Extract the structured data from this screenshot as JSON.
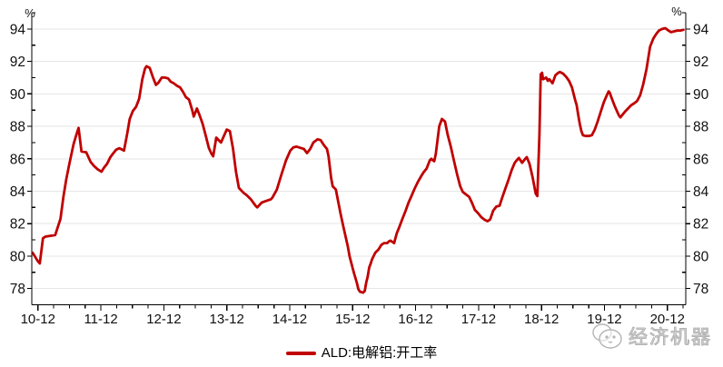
{
  "chart_data": {
    "type": "line",
    "title": "",
    "unit_label": "%",
    "x_axis": {
      "start": "2010-11",
      "end": "2021-03",
      "tick_labels": [
        "10-12",
        "11-12",
        "12-12",
        "13-12",
        "14-12",
        "15-12",
        "16-12",
        "17-12",
        "18-12",
        "19-12",
        "20-12"
      ],
      "tick_months": [
        1,
        13,
        25,
        37,
        49,
        61,
        73,
        85,
        97,
        109,
        121
      ],
      "minor_tick_step_months": 3
    },
    "y_axis": {
      "min": 77,
      "max": 95,
      "major_ticks": [
        94,
        92,
        90,
        88,
        86,
        84,
        82,
        80,
        78
      ],
      "minor_ticks": [
        95,
        93,
        91,
        89,
        87,
        85,
        83,
        81,
        79
      ],
      "grid_values": [
        94,
        92,
        90,
        88,
        86,
        84,
        82,
        80,
        78
      ],
      "grid_on": true
    },
    "legend_position": "bottom-center",
    "series": [
      {
        "name": "ALD:电解铝:开工率",
        "color": "#C00000",
        "x_unit": "months_since_2010-11",
        "points": [
          [
            0,
            80.2
          ],
          [
            0.95,
            79.7
          ],
          [
            1.35,
            79.55
          ],
          [
            1.95,
            81.1
          ],
          [
            2.4,
            81.2
          ],
          [
            4.3,
            81.3
          ],
          [
            5.3,
            82.3
          ],
          [
            5.85,
            83.65
          ],
          [
            6.4,
            84.75
          ],
          [
            7,
            85.7
          ],
          [
            7.8,
            86.9
          ],
          [
            8.3,
            87.45
          ],
          [
            8.75,
            87.9
          ],
          [
            9.3,
            86.45
          ],
          [
            10.2,
            86.4
          ],
          [
            11.05,
            85.8
          ],
          [
            11.7,
            85.55
          ],
          [
            12.4,
            85.35
          ],
          [
            13.1,
            85.2
          ],
          [
            13.6,
            85.45
          ],
          [
            14.2,
            85.7
          ],
          [
            14.8,
            86.1
          ],
          [
            15.4,
            86.35
          ],
          [
            15.9,
            86.55
          ],
          [
            16.5,
            86.65
          ],
          [
            17.1,
            86.55
          ],
          [
            17.4,
            86.5
          ],
          [
            18,
            87.5
          ],
          [
            18.5,
            88.45
          ],
          [
            19.1,
            88.95
          ],
          [
            19.7,
            89.2
          ],
          [
            20.3,
            89.7
          ],
          [
            20.9,
            90.9
          ],
          [
            21.4,
            91.55
          ],
          [
            21.7,
            91.7
          ],
          [
            22.3,
            91.6
          ],
          [
            22.9,
            91.05
          ],
          [
            23.5,
            90.55
          ],
          [
            24,
            90.7
          ],
          [
            24.6,
            91
          ],
          [
            25.2,
            91
          ],
          [
            25.8,
            90.95
          ],
          [
            26.3,
            90.75
          ],
          [
            26.9,
            90.65
          ],
          [
            27.5,
            90.5
          ],
          [
            28.1,
            90.4
          ],
          [
            28.7,
            90.1
          ],
          [
            29.2,
            89.8
          ],
          [
            29.8,
            89.65
          ],
          [
            30.4,
            89
          ],
          [
            30.7,
            88.6
          ],
          [
            31.3,
            89.1
          ],
          [
            31.8,
            88.7
          ],
          [
            32.4,
            88.15
          ],
          [
            33,
            87.4
          ],
          [
            33.6,
            86.65
          ],
          [
            34.1,
            86.3
          ],
          [
            34.4,
            86.15
          ],
          [
            35,
            87.3
          ],
          [
            35.9,
            87
          ],
          [
            36.45,
            87.4
          ],
          [
            37,
            87.8
          ],
          [
            37.6,
            87.7
          ],
          [
            38.2,
            86.6
          ],
          [
            38.75,
            85.2
          ],
          [
            39.3,
            84.2
          ],
          [
            40.2,
            83.9
          ],
          [
            40.8,
            83.75
          ],
          [
            41.6,
            83.5
          ],
          [
            42.5,
            83.1
          ],
          [
            42.8,
            83
          ],
          [
            43.65,
            83.3
          ],
          [
            44.5,
            83.4
          ],
          [
            45.4,
            83.5
          ],
          [
            45.7,
            83.6
          ],
          [
            46.55,
            84.1
          ],
          [
            47.4,
            85
          ],
          [
            48.3,
            85.9
          ],
          [
            49.1,
            86.5
          ],
          [
            49.7,
            86.7
          ],
          [
            50.3,
            86.75
          ],
          [
            51.2,
            86.65
          ],
          [
            51.7,
            86.6
          ],
          [
            52.3,
            86.35
          ],
          [
            52.9,
            86.6
          ],
          [
            53.5,
            87
          ],
          [
            54.3,
            87.2
          ],
          [
            54.9,
            87.15
          ],
          [
            55.5,
            86.85
          ],
          [
            56.1,
            86.6
          ],
          [
            56.4,
            86.15
          ],
          [
            56.9,
            84.8
          ],
          [
            57.2,
            84.3
          ],
          [
            57.8,
            84.1
          ],
          [
            58.1,
            83.6
          ],
          [
            58.7,
            82.6
          ],
          [
            59.2,
            81.85
          ],
          [
            59.8,
            81
          ],
          [
            60.1,
            80.55
          ],
          [
            60.4,
            80
          ],
          [
            61,
            79.25
          ],
          [
            61.3,
            78.9
          ],
          [
            61.8,
            78.35
          ],
          [
            62.1,
            77.95
          ],
          [
            62.4,
            77.8
          ],
          [
            63,
            77.75
          ],
          [
            63.3,
            77.85
          ],
          [
            63.6,
            78.4
          ],
          [
            63.85,
            78.7
          ],
          [
            64.15,
            79.3
          ],
          [
            64.4,
            79.5
          ],
          [
            64.7,
            79.8
          ],
          [
            65.3,
            80.2
          ],
          [
            65.9,
            80.4
          ],
          [
            66.5,
            80.7
          ],
          [
            67,
            80.8
          ],
          [
            67.6,
            80.8
          ],
          [
            67.9,
            80.9
          ],
          [
            68.2,
            80.95
          ],
          [
            68.9,
            80.8
          ],
          [
            69.4,
            81.4
          ],
          [
            69.9,
            81.8
          ],
          [
            70.5,
            82.3
          ],
          [
            71.1,
            82.8
          ],
          [
            71.65,
            83.3
          ],
          [
            72.2,
            83.7
          ],
          [
            72.8,
            84.15
          ],
          [
            73.4,
            84.55
          ],
          [
            74,
            84.9
          ],
          [
            74.5,
            85.15
          ],
          [
            75.1,
            85.4
          ],
          [
            75.7,
            85.9
          ],
          [
            76,
            86
          ],
          [
            76.3,
            85.9
          ],
          [
            76.55,
            85.85
          ],
          [
            76.85,
            86.3
          ],
          [
            77.2,
            87.2
          ],
          [
            77.5,
            88
          ],
          [
            78,
            88.45
          ],
          [
            78.6,
            88.3
          ],
          [
            79.1,
            87.5
          ],
          [
            79.7,
            86.75
          ],
          [
            80.3,
            85.9
          ],
          [
            80.9,
            85.05
          ],
          [
            81.5,
            84.3
          ],
          [
            82,
            83.95
          ],
          [
            82.6,
            83.8
          ],
          [
            83.2,
            83.65
          ],
          [
            83.8,
            83.25
          ],
          [
            84.3,
            82.85
          ],
          [
            84.9,
            82.65
          ],
          [
            85.5,
            82.4
          ],
          [
            86.1,
            82.25
          ],
          [
            86.7,
            82.15
          ],
          [
            87.2,
            82.25
          ],
          [
            87.8,
            82.8
          ],
          [
            88.4,
            83.05
          ],
          [
            89,
            83.1
          ],
          [
            89.5,
            83.6
          ],
          [
            90.1,
            84.15
          ],
          [
            90.7,
            84.7
          ],
          [
            91.3,
            85.3
          ],
          [
            91.9,
            85.75
          ],
          [
            92.4,
            85.95
          ],
          [
            92.7,
            86.05
          ],
          [
            93.3,
            85.75
          ],
          [
            93.9,
            86
          ],
          [
            94.2,
            86.1
          ],
          [
            94.7,
            85.7
          ],
          [
            95,
            85.3
          ],
          [
            95.3,
            84.85
          ],
          [
            95.9,
            83.85
          ],
          [
            96.2,
            83.7
          ],
          [
            96.6,
            87.5
          ],
          [
            96.85,
            91.2
          ],
          [
            97.1,
            91.3
          ],
          [
            97.3,
            90.9
          ],
          [
            97.9,
            91
          ],
          [
            98.2,
            90.8
          ],
          [
            98.5,
            90.9
          ],
          [
            99.1,
            90.65
          ],
          [
            99.65,
            91.15
          ],
          [
            100.2,
            91.3
          ],
          [
            100.5,
            91.35
          ],
          [
            101.1,
            91.25
          ],
          [
            101.7,
            91.05
          ],
          [
            102.25,
            90.8
          ],
          [
            102.8,
            90.4
          ],
          [
            103.4,
            89.65
          ],
          [
            103.7,
            89.3
          ],
          [
            104,
            88.7
          ],
          [
            104.3,
            88.15
          ],
          [
            104.6,
            87.7
          ],
          [
            104.9,
            87.45
          ],
          [
            105.4,
            87.4
          ],
          [
            106,
            87.4
          ],
          [
            106.6,
            87.45
          ],
          [
            107.15,
            87.8
          ],
          [
            107.7,
            88.3
          ],
          [
            108.3,
            88.9
          ],
          [
            108.9,
            89.5
          ],
          [
            109.5,
            89.95
          ],
          [
            109.8,
            90.15
          ],
          [
            110.05,
            90.05
          ],
          [
            110.3,
            89.8
          ],
          [
            110.9,
            89.3
          ],
          [
            111.5,
            88.85
          ],
          [
            111.8,
            88.65
          ],
          [
            112.05,
            88.55
          ],
          [
            112.3,
            88.65
          ],
          [
            112.9,
            88.9
          ],
          [
            113.5,
            89.1
          ],
          [
            114.1,
            89.3
          ],
          [
            114.6,
            89.4
          ],
          [
            115.2,
            89.55
          ],
          [
            115.8,
            89.9
          ],
          [
            116.4,
            90.6
          ],
          [
            117,
            91.5
          ],
          [
            117.4,
            92.3
          ],
          [
            117.7,
            92.9
          ],
          [
            118.3,
            93.4
          ],
          [
            118.9,
            93.7
          ],
          [
            119.4,
            93.9
          ],
          [
            120,
            94
          ],
          [
            120.6,
            94.05
          ],
          [
            121.2,
            93.9
          ],
          [
            121.7,
            93.8
          ],
          [
            122.3,
            93.85
          ],
          [
            122.9,
            93.9
          ],
          [
            123.5,
            93.9
          ],
          [
            124.05,
            93.95
          ]
        ]
      }
    ]
  },
  "legend": {
    "label": "ALD:电解铝:开工率"
  },
  "watermark": {
    "text": "经济机器"
  },
  "colors": {
    "line": "#C00000",
    "grid": "#E6E6E6",
    "axis": "#000000",
    "text": "#111111",
    "watermark": "#ababab",
    "background": "#ffffff"
  }
}
